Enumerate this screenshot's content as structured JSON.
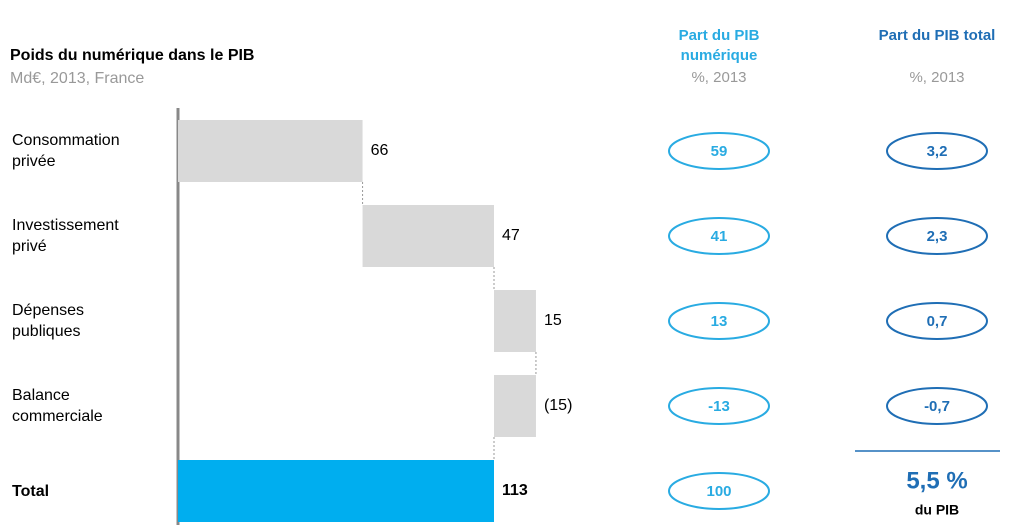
{
  "chart_data": {
    "type": "waterfall",
    "title": "Poids du numérique dans le PIB",
    "subtitle": "Md€, 2013, France",
    "categories": [
      "Consommation privée",
      "Investissement privé",
      "Dépenses publiques",
      "Balance commerciale",
      "Total"
    ],
    "values": [
      66,
      47,
      15,
      -15,
      113
    ],
    "value_labels": [
      "66",
      "47",
      "15",
      "(15)",
      "113"
    ],
    "color": "#d9d9d9",
    "total_color": "#00aeef",
    "xlim": [
      0,
      113
    ]
  },
  "side_columns": [
    {
      "title": "Part du PIB numérique",
      "subtitle": "%, 2013",
      "color": "#29abe2",
      "values": [
        59,
        41,
        13,
        -13,
        100
      ]
    },
    {
      "title": "Part du PIB total",
      "subtitle": "%, 2013",
      "color": "#1f6eb5",
      "values": [
        3.2,
        2.3,
        0.7,
        -0.7
      ],
      "value_labels": [
        "3,2",
        "2,3",
        "0,7",
        "-0,7"
      ],
      "total_label": "5,5 %",
      "total_note": "du PIB"
    }
  ]
}
